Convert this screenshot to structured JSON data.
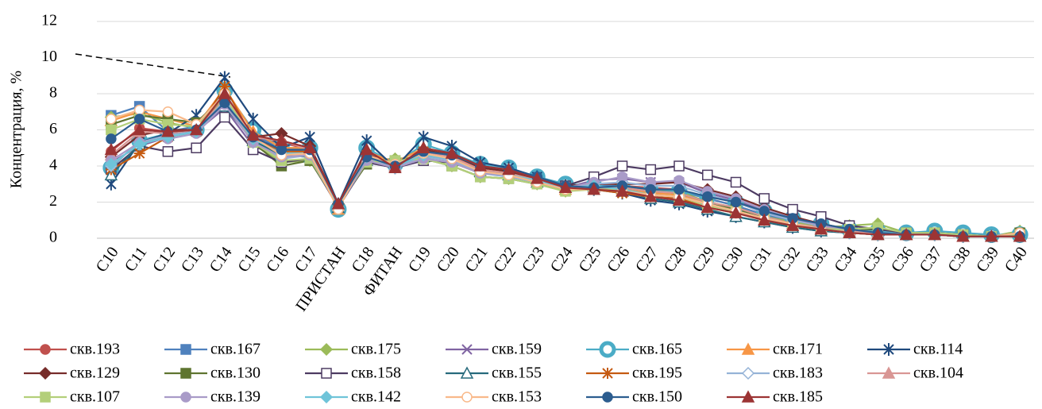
{
  "chart_data": {
    "type": "line",
    "y_label": "Концентрация, %",
    "categories": [
      "C10",
      "C11",
      "C12",
      "C13",
      "C14",
      "C15",
      "C16",
      "C17",
      "ПРИСТАН",
      "C18",
      "ФИТАН",
      "C19",
      "C20",
      "C21",
      "C22",
      "C23",
      "C24",
      "C25",
      "C26",
      "C27",
      "C28",
      "C29",
      "C30",
      "C31",
      "C32",
      "C33",
      "C34",
      "C35",
      "C36",
      "C37",
      "C38",
      "C39",
      "C40"
    ],
    "ylim": [
      0,
      12
    ],
    "yticks": [
      0,
      2,
      4,
      6,
      8,
      10,
      12
    ],
    "grid": true,
    "legend": "bottom",
    "series": [
      {
        "name": "скв.193",
        "color": "#c0504d",
        "marker": "circle",
        "values": [
          4.8,
          6.1,
          5.9,
          6.0,
          7.9,
          5.5,
          5.3,
          4.9,
          1.9,
          4.7,
          4.0,
          4.9,
          4.6,
          3.9,
          3.7,
          3.2,
          2.8,
          2.8,
          2.9,
          2.8,
          2.7,
          2.2,
          1.8,
          1.3,
          0.9,
          0.6,
          0.4,
          0.3,
          0.2,
          0.2,
          0.1,
          0.1,
          0.1
        ]
      },
      {
        "name": "скв.167",
        "color": "#4f81bd",
        "marker": "square",
        "values": [
          6.8,
          7.3,
          5.9,
          6.2,
          7.6,
          5.8,
          4.9,
          4.8,
          1.8,
          4.4,
          4.0,
          4.6,
          4.4,
          3.7,
          3.6,
          3.2,
          2.8,
          2.9,
          2.9,
          2.7,
          2.6,
          2.2,
          1.8,
          1.3,
          0.9,
          0.6,
          0.4,
          0.3,
          0.2,
          0.2,
          0.1,
          0.1,
          0.1
        ]
      },
      {
        "name": "скв.175",
        "color": "#9bbb59",
        "marker": "diamond",
        "values": [
          6.7,
          6.9,
          6.4,
          6.1,
          7.8,
          5.2,
          4.2,
          4.3,
          1.9,
          4.3,
          4.4,
          4.5,
          4.0,
          3.4,
          3.3,
          3.0,
          2.6,
          2.8,
          2.9,
          2.7,
          2.6,
          2.0,
          1.7,
          1.2,
          0.9,
          0.6,
          0.7,
          0.8,
          0.3,
          0.3,
          0.2,
          0.1,
          0.4
        ]
      },
      {
        "name": "скв.159",
        "color": "#8064a2",
        "marker": "x",
        "values": [
          4.2,
          5.1,
          5.6,
          5.9,
          7.2,
          5.1,
          4.5,
          4.6,
          1.7,
          4.2,
          3.9,
          4.3,
          4.2,
          3.7,
          3.5,
          3.1,
          2.8,
          3.2,
          3.3,
          3.1,
          3.1,
          2.5,
          2.1,
          1.5,
          1.0,
          0.7,
          0.5,
          0.4,
          0.3,
          0.2,
          0.2,
          0.1,
          0.1
        ]
      },
      {
        "name": "скв.165",
        "color": "#4bacc6",
        "marker": "ring",
        "values": [
          3.9,
          5.4,
          5.8,
          6.0,
          8.2,
          6.0,
          5.0,
          5.0,
          1.6,
          5.0,
          4.1,
          5.2,
          4.7,
          4.1,
          3.9,
          3.4,
          3.0,
          2.9,
          2.8,
          2.6,
          2.6,
          2.3,
          2.0,
          1.5,
          1.1,
          0.8,
          0.5,
          0.4,
          0.3,
          0.4,
          0.3,
          0.2,
          0.2
        ]
      },
      {
        "name": "скв.171",
        "color": "#f79646",
        "marker": "triangle",
        "values": [
          6.5,
          7.0,
          6.6,
          6.2,
          8.3,
          5.9,
          5.0,
          5.0,
          1.6,
          4.8,
          4.2,
          5.0,
          4.5,
          3.8,
          3.6,
          3.2,
          2.7,
          2.8,
          2.7,
          2.5,
          2.4,
          2.0,
          1.6,
          1.2,
          0.8,
          0.5,
          0.3,
          0.2,
          0.2,
          0.2,
          0.1,
          0.1,
          0.1
        ]
      },
      {
        "name": "скв.114",
        "color": "#1f497d",
        "marker": "star",
        "values": [
          3.0,
          5.3,
          5.8,
          6.8,
          8.9,
          6.6,
          5.0,
          5.6,
          1.9,
          5.4,
          3.9,
          5.6,
          5.1,
          4.2,
          3.9,
          3.4,
          2.9,
          2.7,
          2.5,
          2.1,
          1.9,
          1.5,
          1.2,
          0.9,
          0.6,
          0.4,
          0.3,
          0.2,
          0.2,
          0.2,
          0.1,
          0.1,
          0.1
        ]
      },
      {
        "name": "скв.129",
        "color": "#772c2a",
        "marker": "diamond",
        "values": [
          4.5,
          5.7,
          6.0,
          6.0,
          7.7,
          5.6,
          5.8,
          5.1,
          1.9,
          4.7,
          4.0,
          4.9,
          4.6,
          3.9,
          3.7,
          3.2,
          2.9,
          3.0,
          3.0,
          3.0,
          3.1,
          2.7,
          2.3,
          1.7,
          1.2,
          0.8,
          0.5,
          0.3,
          0.2,
          0.2,
          0.1,
          0.1,
          0.1
        ]
      },
      {
        "name": "скв.130",
        "color": "#5f7530",
        "marker": "square",
        "values": [
          6.3,
          6.8,
          6.6,
          6.4,
          7.9,
          5.3,
          4.0,
          4.3,
          1.8,
          4.1,
          4.3,
          4.4,
          4.0,
          3.4,
          3.3,
          3.0,
          2.7,
          2.8,
          2.8,
          2.6,
          2.5,
          2.0,
          1.6,
          1.2,
          0.8,
          0.5,
          0.5,
          0.5,
          0.3,
          0.3,
          0.2,
          0.1,
          0.3
        ]
      },
      {
        "name": "скв.158",
        "color": "#4d3b62",
        "marker": "open-square",
        "values": [
          3.8,
          5.1,
          4.8,
          5.0,
          6.7,
          4.9,
          4.2,
          4.4,
          1.7,
          4.2,
          3.9,
          4.3,
          4.2,
          3.6,
          3.5,
          3.1,
          2.9,
          3.4,
          4.0,
          3.8,
          4.0,
          3.5,
          3.1,
          2.2,
          1.6,
          1.2,
          0.7,
          0.5,
          0.3,
          0.3,
          0.2,
          0.1,
          0.1
        ]
      },
      {
        "name": "скв.155",
        "color": "#276a7c",
        "marker": "open-triangle",
        "values": [
          3.5,
          5.2,
          5.7,
          6.0,
          7.3,
          5.4,
          4.6,
          4.5,
          1.7,
          4.3,
          4.0,
          4.5,
          4.3,
          3.7,
          3.5,
          3.1,
          2.8,
          2.8,
          2.6,
          2.2,
          2.0,
          1.6,
          1.2,
          0.9,
          0.6,
          0.4,
          0.3,
          0.2,
          0.2,
          0.2,
          0.1,
          0.1,
          0.1
        ]
      },
      {
        "name": "скв.195",
        "color": "#c55a11",
        "marker": "asterisk",
        "values": [
          3.8,
          4.7,
          5.6,
          5.9,
          8.4,
          5.5,
          4.8,
          4.8,
          1.8,
          4.6,
          4.0,
          4.8,
          4.5,
          3.8,
          3.6,
          3.2,
          2.8,
          2.7,
          2.5,
          2.3,
          2.2,
          1.7,
          1.4,
          1.0,
          0.7,
          0.5,
          0.3,
          0.2,
          0.2,
          0.2,
          0.1,
          0.1,
          0.1
        ]
      },
      {
        "name": "скв.183",
        "color": "#95b3d7",
        "marker": "open-diamond",
        "values": [
          4.0,
          5.3,
          5.7,
          5.9,
          7.5,
          5.3,
          4.4,
          4.6,
          1.7,
          4.4,
          3.9,
          4.5,
          4.3,
          3.6,
          3.4,
          3.1,
          2.8,
          3.0,
          3.1,
          2.9,
          2.9,
          2.4,
          2.0,
          1.4,
          1.0,
          0.7,
          0.4,
          0.3,
          0.2,
          0.2,
          0.1,
          0.1,
          0.1
        ]
      },
      {
        "name": "скв.104",
        "color": "#d99694",
        "marker": "triangle",
        "values": [
          4.6,
          5.9,
          5.8,
          6.0,
          7.7,
          5.6,
          5.4,
          4.9,
          1.8,
          4.6,
          4.0,
          4.8,
          4.5,
          3.8,
          3.6,
          3.2,
          2.8,
          2.8,
          2.8,
          2.6,
          2.5,
          2.0,
          1.7,
          1.2,
          0.8,
          0.6,
          0.4,
          0.3,
          0.2,
          0.2,
          0.1,
          0.1,
          0.1
        ]
      },
      {
        "name": "скв.107",
        "color": "#b3cf7a",
        "marker": "square",
        "values": [
          6.0,
          6.6,
          6.3,
          6.2,
          7.9,
          5.3,
          4.3,
          4.4,
          1.8,
          4.2,
          4.3,
          4.4,
          4.0,
          3.4,
          3.3,
          3.0,
          2.6,
          2.7,
          2.7,
          2.4,
          2.3,
          1.8,
          1.5,
          1.1,
          0.7,
          0.5,
          0.5,
          0.6,
          0.3,
          0.3,
          0.2,
          0.1,
          0.2
        ]
      },
      {
        "name": "скв.139",
        "color": "#a99bc8",
        "marker": "circle",
        "values": [
          4.3,
          5.3,
          5.5,
          5.8,
          7.4,
          5.3,
          4.5,
          4.6,
          1.7,
          4.3,
          3.9,
          4.4,
          4.2,
          3.6,
          3.5,
          3.1,
          2.8,
          3.1,
          3.4,
          3.1,
          3.2,
          2.6,
          2.2,
          1.6,
          1.1,
          0.7,
          0.5,
          0.3,
          0.2,
          0.2,
          0.1,
          0.1,
          0.1
        ]
      },
      {
        "name": "скв.142",
        "color": "#6fc4d9",
        "marker": "diamond",
        "values": [
          4.1,
          5.2,
          5.6,
          5.9,
          7.6,
          5.5,
          4.7,
          4.7,
          1.7,
          4.5,
          4.0,
          4.6,
          4.4,
          3.7,
          3.5,
          3.2,
          2.8,
          2.9,
          2.7,
          2.4,
          2.3,
          1.9,
          1.5,
          1.1,
          0.8,
          0.5,
          0.3,
          0.2,
          0.2,
          0.2,
          0.1,
          0.1,
          0.1
        ]
      },
      {
        "name": "скв.153",
        "color": "#f9b98a",
        "marker": "open-circle",
        "values": [
          6.6,
          7.1,
          7.0,
          6.3,
          8.0,
          5.6,
          4.6,
          4.7,
          1.6,
          4.6,
          4.1,
          4.7,
          4.4,
          3.7,
          3.5,
          3.1,
          2.7,
          2.7,
          2.6,
          2.4,
          2.3,
          1.9,
          1.5,
          1.1,
          0.8,
          0.5,
          0.3,
          0.2,
          0.2,
          0.2,
          0.1,
          0.1,
          0.3
        ]
      },
      {
        "name": "скв.150",
        "color": "#2c5d8f",
        "marker": "circle",
        "values": [
          5.5,
          6.6,
          5.9,
          6.0,
          7.5,
          5.6,
          4.9,
          4.9,
          1.9,
          4.5,
          4.0,
          4.8,
          4.6,
          4.0,
          3.8,
          3.4,
          2.9,
          2.8,
          2.9,
          2.7,
          2.7,
          2.3,
          2.0,
          1.5,
          1.1,
          0.8,
          0.5,
          0.3,
          0.2,
          0.2,
          0.1,
          0.1,
          0.1
        ]
      },
      {
        "name": "скв.185",
        "color": "#9c3434",
        "marker": "triangle",
        "values": [
          4.9,
          6.0,
          5.9,
          6.0,
          8.0,
          5.7,
          5.4,
          5.0,
          1.9,
          4.9,
          3.9,
          5.0,
          4.7,
          4.0,
          3.8,
          3.3,
          2.8,
          2.7,
          2.6,
          2.3,
          2.1,
          1.7,
          1.4,
          1.0,
          0.7,
          0.5,
          0.3,
          0.2,
          0.2,
          0.2,
          0.1,
          0.1,
          0.1
        ]
      }
    ]
  }
}
